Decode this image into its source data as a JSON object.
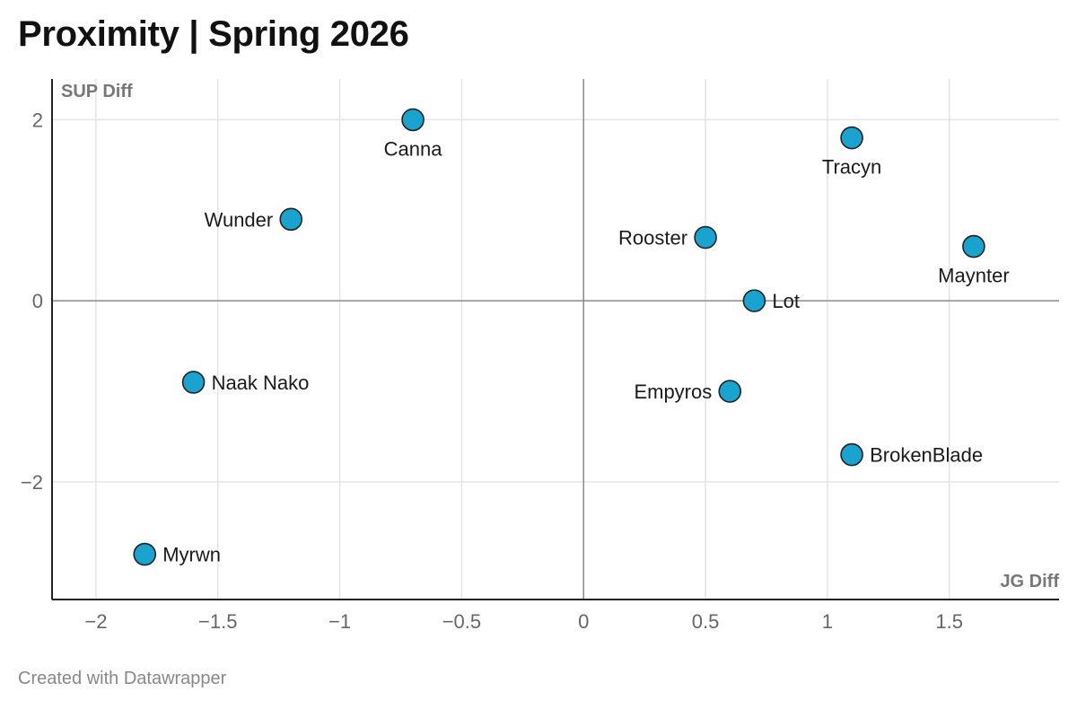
{
  "title": "Proximity | Spring 2026",
  "footer": "Created with Datawrapper",
  "chart_data": {
    "type": "scatter",
    "title": "Proximity | Spring 2026",
    "xlabel": "JG Diff",
    "ylabel": "SUP Diff",
    "xlim": [
      -2.18,
      1.95
    ],
    "ylim": [
      -3.3,
      2.45
    ],
    "x_ticks": [
      -2,
      -1.5,
      -1,
      -0.5,
      0,
      0.5,
      1,
      1.5
    ],
    "x_tick_labels": [
      "−2",
      "−1.5",
      "−1",
      "−0.5",
      "0",
      "0.5",
      "1",
      "1.5"
    ],
    "y_ticks": [
      2,
      0,
      -2
    ],
    "y_tick_labels": [
      "2",
      "0",
      "−2"
    ],
    "grid": true,
    "point_color": "#1ba3cf",
    "points": [
      {
        "name": "Canna",
        "x": -0.7,
        "y": 2.0,
        "label_pos": "below"
      },
      {
        "name": "Tracyn",
        "x": 1.1,
        "y": 1.8,
        "label_pos": "below"
      },
      {
        "name": "Wunder",
        "x": -1.2,
        "y": 0.9,
        "label_pos": "left"
      },
      {
        "name": "Rooster",
        "x": 0.5,
        "y": 0.7,
        "label_pos": "left"
      },
      {
        "name": "Maynter",
        "x": 1.6,
        "y": 0.6,
        "label_pos": "below"
      },
      {
        "name": "Lot",
        "x": 0.7,
        "y": 0.0,
        "label_pos": "right"
      },
      {
        "name": "Naak Nako",
        "x": -1.6,
        "y": -0.9,
        "label_pos": "right"
      },
      {
        "name": "Empyros",
        "x": 0.6,
        "y": -1.0,
        "label_pos": "left"
      },
      {
        "name": "BrokenBlade",
        "x": 1.1,
        "y": -1.7,
        "label_pos": "right"
      },
      {
        "name": "Myrwn",
        "x": -1.8,
        "y": -2.8,
        "label_pos": "right"
      }
    ]
  }
}
